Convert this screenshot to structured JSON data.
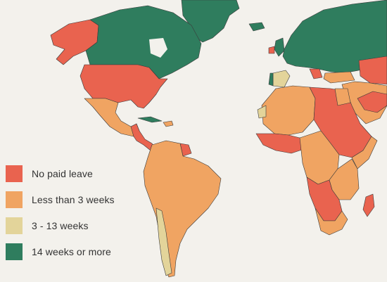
{
  "map": {
    "colors": {
      "ocean": "#f3f1ec",
      "border": "#3a3a3a",
      "no_paid_leave": "#e9634f",
      "less_than_3_weeks": "#f0a462",
      "three_to_13_weeks": "#e3d49a",
      "fourteen_weeks_or_more": "#2f7d5e"
    }
  },
  "legend": {
    "items": [
      {
        "label": "No paid leave",
        "color": "#e9634f",
        "icon": "red-square"
      },
      {
        "label": "Less than 3 weeks",
        "color": "#f0a462",
        "icon": "orange-square"
      },
      {
        "label": "3 - 13 weeks",
        "color": "#e3d49a",
        "icon": "tan-square"
      },
      {
        "label": "14 weeks or more",
        "color": "#2f7d5e",
        "icon": "green-square"
      }
    ]
  }
}
